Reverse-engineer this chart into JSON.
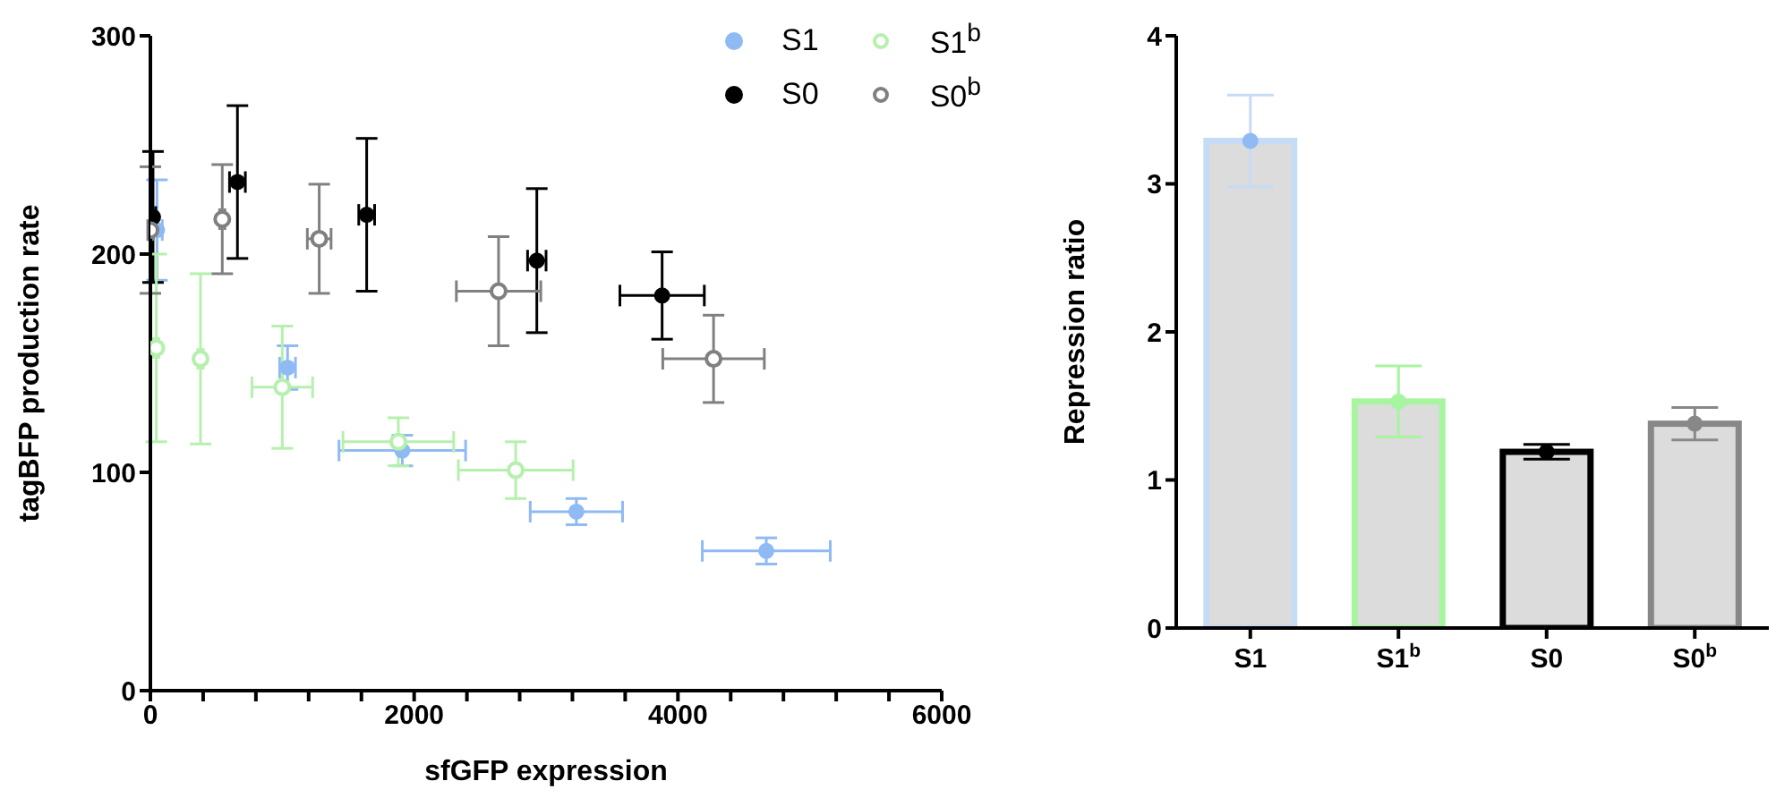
{
  "chart_data": [
    {
      "type": "scatter",
      "xlabel": "sfGFP expression",
      "ylabel": "tagBFP production rate",
      "xlim": [
        0,
        6000
      ],
      "ylim": [
        0,
        300
      ],
      "xticks": [
        0,
        {
          "value": 400,
          "label": null
        },
        {
          "value": 800,
          "label": null
        },
        {
          "value": 1200,
          "label": null
        },
        {
          "value": 1600,
          "label": null
        },
        2000,
        {
          "value": 2400,
          "label": null
        },
        {
          "value": 2800,
          "label": null
        },
        {
          "value": 3200,
          "label": null
        },
        {
          "value": 3600,
          "label": null
        },
        4000,
        {
          "value": 4400,
          "label": null
        },
        {
          "value": 4800,
          "label": null
        },
        {
          "value": 5200,
          "label": null
        },
        {
          "value": 5600,
          "label": null
        },
        6000
      ],
      "yticks": [
        0,
        100,
        200,
        300
      ],
      "grid": false,
      "legend": "top right",
      "series": [
        {
          "name": "S1",
          "color": "#8fbaf3",
          "marker": "circle",
          "x": [
            50,
            1040,
            1910,
            3230,
            4670
          ],
          "values": [
            211,
            148,
            110,
            82,
            64
          ],
          "errors": [
            23,
            10,
            7,
            6,
            6
          ],
          "xerrors": [
            40,
            60,
            480,
            350,
            485
          ]
        },
        {
          "name": "S0",
          "color": "#000000",
          "marker": "circle",
          "x": [
            20,
            660,
            1640,
            2930,
            3880
          ],
          "values": [
            217,
            233,
            218,
            197,
            181
          ],
          "errors": [
            30,
            35,
            35,
            33,
            20
          ],
          "xerrors": [
            20,
            60,
            60,
            70,
            320
          ]
        },
        {
          "name": "S1$^{b}$",
          "color": "#b5f0ad",
          "marker": "circle-open",
          "x": [
            45,
            380,
            1000,
            1880,
            2770
          ],
          "values": [
            157,
            152,
            139,
            114,
            101
          ],
          "errors": [
            43,
            39,
            28,
            11,
            13
          ],
          "xerrors": [
            20,
            20,
            230,
            420,
            435
          ]
        },
        {
          "name": "S0$^{b}$",
          "color": "#808080",
          "marker": "circle-open",
          "x": [
            0,
            545,
            1280,
            2640,
            4270
          ],
          "values": [
            211,
            216,
            207,
            183,
            152
          ],
          "errors": [
            29,
            25,
            25,
            25,
            20
          ],
          "xerrors": [
            20,
            20,
            90,
            320,
            385
          ]
        }
      ]
    },
    {
      "type": "bar",
      "ylabel": "Repression ratio",
      "categories": [
        "S1",
        "S1$^{b}$",
        "S0",
        "S0$^{b}$"
      ],
      "ylim": [
        0,
        4
      ],
      "yticks": [
        0,
        1,
        2,
        3,
        4
      ],
      "grid": false,
      "series": [
        {
          "type": "bar",
          "values": [
            3.29,
            1.53,
            1.19,
            1.38
          ],
          "errors": [
            0.31,
            0.24,
            0.05,
            0.11
          ],
          "colors": [
            "#c6dbf5",
            "#a8f5a0",
            "#000000",
            "#888888"
          ]
        },
        {
          "type": "scatter",
          "marker": "circle",
          "x": [
            "S1",
            "S1$^{b}$",
            "S0",
            "S0$^{b}$"
          ],
          "values": [
            3.29,
            1.53,
            1.19,
            1.38
          ],
          "colors": [
            "#8fbaf3",
            "#a8f5a0",
            "#000000",
            "#888888"
          ]
        }
      ]
    }
  ]
}
